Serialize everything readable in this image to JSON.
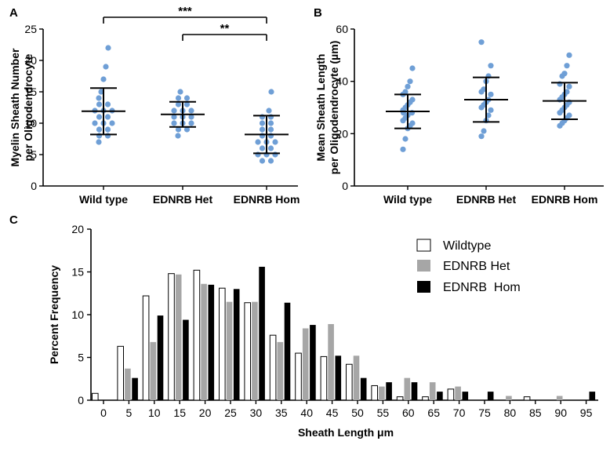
{
  "colors": {
    "dot": "#6f9fd6",
    "wildtype": "#ffffff",
    "het": "#a6a6a6",
    "hom": "#000000"
  },
  "panels": {
    "a": "A",
    "b": "B",
    "c": "C"
  },
  "chart_data": [
    {
      "type": "scatter",
      "panel": "A",
      "categories": [
        "Wild type",
        "EDNRB Het",
        "EDNRB Hom"
      ],
      "ylabel": [
        "Myelin Sheath Number",
        "per Oligodendrocyte"
      ],
      "ylim": [
        0,
        25
      ],
      "yticks": [
        "0",
        "5",
        "10",
        "15",
        "20",
        "25"
      ],
      "series": [
        {
          "values": [
            7,
            8,
            8,
            9,
            9,
            10,
            10,
            10,
            11,
            11,
            12,
            12,
            12,
            13,
            13,
            14,
            15,
            17,
            19,
            22
          ],
          "mean": 11.9,
          "sd_low": 8.2,
          "sd_high": 15.6
        },
        {
          "values": [
            8,
            9,
            9,
            10,
            10,
            10,
            11,
            11,
            11,
            12,
            12,
            12,
            13,
            13,
            14,
            14,
            15
          ],
          "mean": 11.4,
          "sd_low": 9.4,
          "sd_high": 13.4
        },
        {
          "values": [
            4,
            4,
            5,
            5,
            5,
            6,
            6,
            7,
            7,
            7,
            8,
            8,
            9,
            9,
            10,
            10,
            11,
            11,
            12,
            15
          ],
          "mean": 8.2,
          "sd_low": 5.2,
          "sd_high": 11.2
        }
      ],
      "significance": [
        {
          "from": 0,
          "to": 2,
          "label": "***"
        },
        {
          "from": 1,
          "to": 2,
          "label": "**"
        }
      ]
    },
    {
      "type": "scatter",
      "panel": "B",
      "categories": [
        "Wild type",
        "EDNRB Het",
        "EDNRB Hom"
      ],
      "ylabel": [
        "Mean Sheath Length",
        "per Oligodendrocyte (µm)"
      ],
      "ylim": [
        0,
        60
      ],
      "yticks": [
        "0",
        "20",
        "40",
        "60"
      ],
      "series": [
        {
          "values": [
            14,
            18,
            22,
            23,
            24,
            25,
            26,
            27,
            28,
            28,
            29,
            30,
            31,
            32,
            33,
            35,
            36,
            38,
            40,
            45
          ],
          "mean": 28.5,
          "sd_low": 22,
          "sd_high": 35
        },
        {
          "values": [
            19,
            21,
            25,
            27,
            29,
            30,
            31,
            32,
            33,
            35,
            36,
            37,
            40,
            42,
            46,
            55
          ],
          "mean": 33,
          "sd_low": 24.5,
          "sd_high": 41.5
        },
        {
          "values": [
            23,
            24,
            25,
            26,
            27,
            28,
            29,
            30,
            31,
            32,
            33,
            34,
            35,
            36,
            38,
            39,
            42,
            43,
            46,
            50
          ],
          "mean": 32.5,
          "sd_low": 25.5,
          "sd_high": 39.5
        }
      ]
    },
    {
      "type": "bar",
      "panel": "C",
      "categories": [
        "0",
        "5",
        "10",
        "15",
        "20",
        "25",
        "30",
        "35",
        "40",
        "45",
        "50",
        "55",
        "60",
        "65",
        "70",
        "75",
        "80",
        "85",
        "90",
        "95"
      ],
      "xlabel": "Sheath Length μm",
      "ylabel": "Percent Frequency",
      "ylim": [
        0,
        20
      ],
      "yticks": [
        "0",
        "5",
        "10",
        "15",
        "20"
      ],
      "legend_position": "top-right",
      "series": [
        {
          "name": "Wildtype",
          "values": [
            0.8,
            6.3,
            12.2,
            14.8,
            15.2,
            13.1,
            11.4,
            7.6,
            5.5,
            5.1,
            4.2,
            1.7,
            0.4,
            0.4,
            1.3,
            0,
            0,
            0.4,
            0,
            0
          ]
        },
        {
          "name": "EDNRB Het",
          "values": [
            0,
            3.7,
            6.8,
            14.7,
            13.6,
            11.5,
            11.5,
            6.8,
            8.4,
            8.9,
            5.2,
            1.6,
            2.6,
            2.1,
            1.6,
            0,
            0.5,
            0,
            0.5,
            0
          ]
        },
        {
          "name": "EDNRB  Hom",
          "values": [
            0,
            2.6,
            9.9,
            9.4,
            13.5,
            13.0,
            15.6,
            11.4,
            8.8,
            5.2,
            2.6,
            2.1,
            2.1,
            1.0,
            1.0,
            1.0,
            0,
            0,
            0,
            1.0
          ]
        }
      ]
    }
  ]
}
